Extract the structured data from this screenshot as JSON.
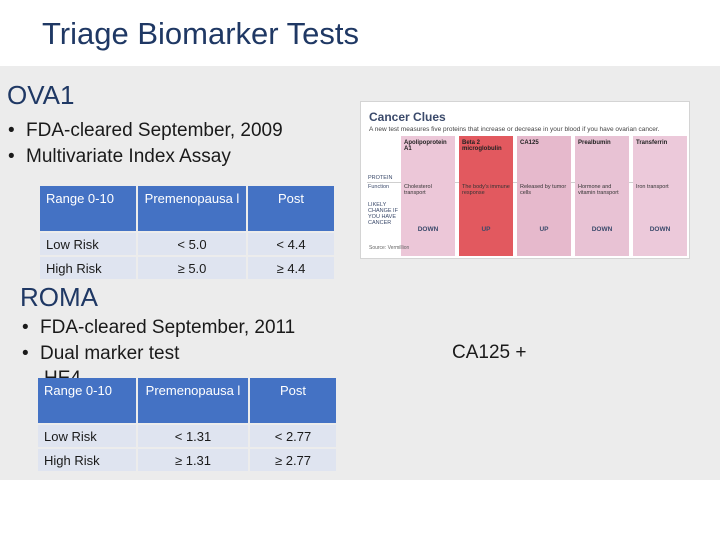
{
  "title": "Triage Biomarker Tests",
  "ova1": {
    "heading": "OVA1",
    "bullets": [
      "FDA-cleared September, 2009",
      "Multivariate Index Assay"
    ],
    "table": {
      "headers": [
        "Range 0-10",
        "Premenopausa l",
        "Post"
      ],
      "rows": [
        [
          "Low Risk",
          "< 5.0",
          "< 4.4"
        ],
        [
          "High Risk",
          "≥ 5.0",
          "≥ 4.4"
        ]
      ]
    }
  },
  "roma": {
    "heading": "ROMA",
    "bullets": [
      "FDA-cleared September, 2011",
      "Dual marker test"
    ],
    "overflow_text": "HE4",
    "side_text": "CA125 +",
    "table": {
      "headers": [
        "Range 0-10",
        "Premenopausa l",
        "Post"
      ],
      "rows": [
        [
          "Low Risk",
          "< 1.31",
          "< 2.77"
        ],
        [
          "High Risk",
          "≥ 1.31",
          "≥ 2.77"
        ]
      ]
    }
  },
  "cancer_clues": {
    "title": "Cancer Clues",
    "subtitle": "A new test measures five proteins that increase or decrease in your blood if you have ovarian cancer.",
    "row_labels": [
      "PROTEIN",
      "Function",
      "LIKELY CHANGE IF YOU HAVE CANCER"
    ],
    "source": "Source: Vermillion",
    "columns": [
      {
        "name": "Apolipoprotein A1",
        "function": "Cholesterol transport",
        "change": "DOWN",
        "color": "#ecc7d8"
      },
      {
        "name": "Beta 2 microglobulin",
        "function": "The body's immune response",
        "change": "UP",
        "color": "#e2595f"
      },
      {
        "name": "CA125",
        "function": "Released by tumor cells",
        "change": "UP",
        "color": "#e6b9cc"
      },
      {
        "name": "Prealbumin",
        "function": "Hormone and vitamin transport",
        "change": "DOWN",
        "color": "#e8c2d4"
      },
      {
        "name": "Transferrin",
        "function": "Iron transport",
        "change": "DOWN",
        "color": "#ecc9da"
      }
    ]
  }
}
